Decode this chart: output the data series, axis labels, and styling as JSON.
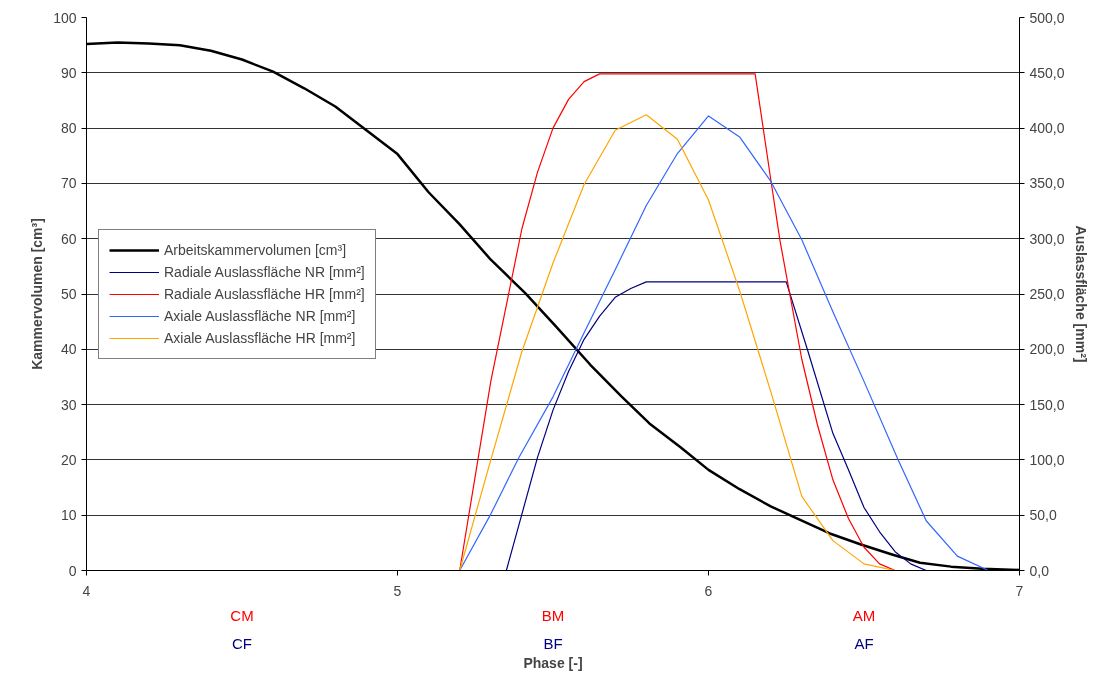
{
  "chart_data": {
    "type": "line",
    "xlabel": "Phase [-]",
    "ylabel": "Kammervolumen [cm³]",
    "y2label": "Auslassfläche [mm²]",
    "xlim": [
      4,
      7
    ],
    "xticks": [
      4,
      5,
      6,
      7
    ],
    "ylim": [
      0,
      100
    ],
    "yticks": [
      0,
      10,
      20,
      30,
      40,
      50,
      60,
      70,
      80,
      90,
      100
    ],
    "y2lim": [
      0,
      500
    ],
    "y2ticks": [
      {
        "value": 0,
        "label": "0,0"
      },
      {
        "value": 50,
        "label": "50,0"
      },
      {
        "value": 100,
        "label": "100,0"
      },
      {
        "value": 150,
        "label": "150,0"
      },
      {
        "value": 200,
        "label": "200,0"
      },
      {
        "value": 250,
        "label": "250,0"
      },
      {
        "value": 300,
        "label": "300,0"
      },
      {
        "value": 350,
        "label": "350,0"
      },
      {
        "value": 400,
        "label": "400,0"
      },
      {
        "value": 450,
        "label": "450,0"
      },
      {
        "value": 500,
        "label": "500,0"
      }
    ],
    "grid": "y",
    "legend": "left",
    "marker": "none",
    "line_style": "solid",
    "series": [
      {
        "name": "Arbeitskammervolumen [cm³]",
        "color": "#000000",
        "x": [
          4,
          4.1,
          4.2,
          4.3,
          4.4,
          4.5,
          4.6,
          4.7,
          4.8,
          4.9,
          5.0,
          5.1,
          5.2,
          5.3,
          5.41,
          5.51,
          5.62,
          5.72,
          5.81,
          5.91,
          6.0,
          6.1,
          6.2,
          6.3,
          6.39,
          6.49,
          6.59,
          6.68,
          6.78,
          6.88,
          7
        ],
        "values": [
          95.2,
          95.5,
          95.3,
          95.0,
          94.0,
          92.4,
          90.2,
          87.2,
          83.9,
          79.6,
          75.3,
          68.4,
          62.6,
          56.2,
          50.2,
          44.1,
          37.2,
          31.5,
          26.6,
          22.3,
          18.2,
          14.7,
          11.6,
          9.0,
          6.7,
          4.7,
          2.9,
          1.4,
          0.7,
          0.3,
          0.1
        ]
      },
      {
        "name": "Radiale Auslassfläche NR [mm²]",
        "color": "#000080",
        "axis": "y2",
        "x": [
          5.0,
          5.35,
          5.4,
          5.45,
          5.5,
          5.55,
          5.6,
          5.65,
          5.7,
          5.75,
          5.8,
          6.25,
          6.32,
          6.4,
          6.45,
          6.5,
          6.55,
          6.6,
          6.65,
          6.7,
          7
        ],
        "values": [
          0,
          0,
          51,
          102,
          145,
          180,
          209,
          230,
          247,
          255,
          261,
          261,
          198,
          124,
          91,
          57,
          35,
          17,
          6,
          0,
          0
        ]
      },
      {
        "name": "Radiale Auslassfläche HR [mm²]",
        "color": "#ff0000",
        "axis": "y2",
        "x": [
          5.0,
          5.2,
          5.3,
          5.4,
          5.45,
          5.5,
          5.55,
          5.6,
          5.65,
          6.15,
          6.2,
          6.23,
          6.3,
          6.35,
          6.4,
          6.45,
          6.5,
          6.55,
          6.6,
          7
        ],
        "values": [
          0,
          0,
          171,
          309,
          360,
          400,
          426,
          442,
          449,
          449,
          354,
          298,
          191,
          132,
          82,
          47,
          21,
          6,
          0,
          0
        ]
      },
      {
        "name": "Axiale Auslassfläche NR [mm²]",
        "color": "#3366ff",
        "axis": "y2",
        "x": [
          5.0,
          5.2,
          5.3,
          5.39,
          5.5,
          5.6,
          5.7,
          5.8,
          5.9,
          6.0,
          6.1,
          6.2,
          6.3,
          6.4,
          6.5,
          6.61,
          6.7,
          6.8,
          6.9,
          7
        ],
        "values": [
          0,
          0,
          51,
          102,
          157,
          215,
          272,
          330,
          377,
          411,
          392,
          352,
          299,
          234,
          171,
          100,
          45,
          13,
          0,
          0
        ]
      },
      {
        "name": "Axiale Auslassfläche HR [mm²]",
        "color": "#ffa500",
        "axis": "y2",
        "x": [
          5.0,
          5.2,
          5.3,
          5.4,
          5.5,
          5.6,
          5.7,
          5.8,
          5.9,
          6.0,
          6.1,
          6.2,
          6.3,
          6.4,
          6.5,
          6.6,
          7
        ],
        "values": [
          0,
          0,
          100,
          198,
          278,
          349,
          398,
          412,
          390,
          335,
          253,
          162,
          67,
          27,
          6,
          0,
          0
        ]
      }
    ],
    "annotations": [
      "CM",
      "CF",
      "BM",
      "BF",
      "AM",
      "AF"
    ]
  }
}
